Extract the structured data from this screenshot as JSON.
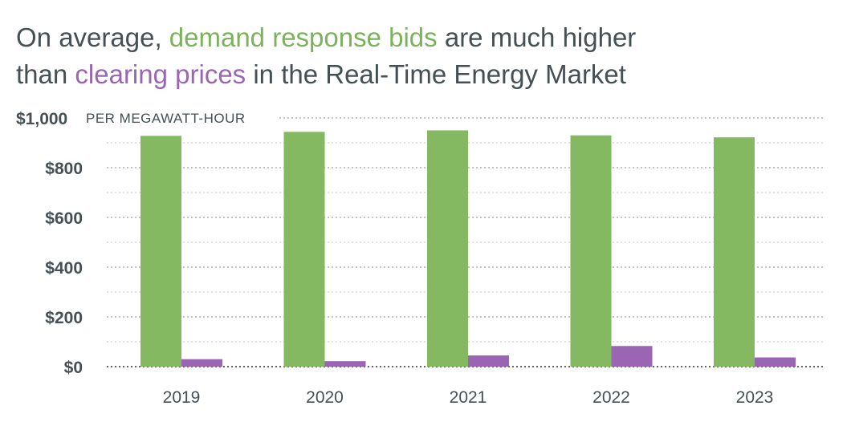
{
  "title": {
    "part1": "On average, ",
    "highlight1": "demand response bids",
    "part2": " are much higher",
    "part3": "than ",
    "highlight2": "clearing prices",
    "part4": " in the Real-Time Energy Market"
  },
  "colors": {
    "text": "#454f54",
    "bids": "#84b962",
    "prices": "#9a66b3",
    "grid": "#9aa0a3"
  },
  "chart_data": {
    "type": "bar",
    "title": "On average, demand response bids are much higher than clearing prices in the Real-Time Energy Market",
    "ylabel": "PER MEGAWATT-HOUR",
    "ylim": [
      0,
      1000
    ],
    "yticks": [
      0,
      200,
      400,
      600,
      800,
      1000
    ],
    "ytick_labels": [
      "$0",
      "$200",
      "$400",
      "$600",
      "$800",
      "$1,000"
    ],
    "grid": true,
    "categories": [
      "2019",
      "2020",
      "2021",
      "2022",
      "2023"
    ],
    "series": [
      {
        "name": "demand response bids",
        "color": "#84b962",
        "values": [
          928,
          944,
          950,
          930,
          922
        ]
      },
      {
        "name": "clearing prices",
        "color": "#9a66b3",
        "values": [
          30,
          22,
          45,
          83,
          37
        ]
      }
    ]
  }
}
